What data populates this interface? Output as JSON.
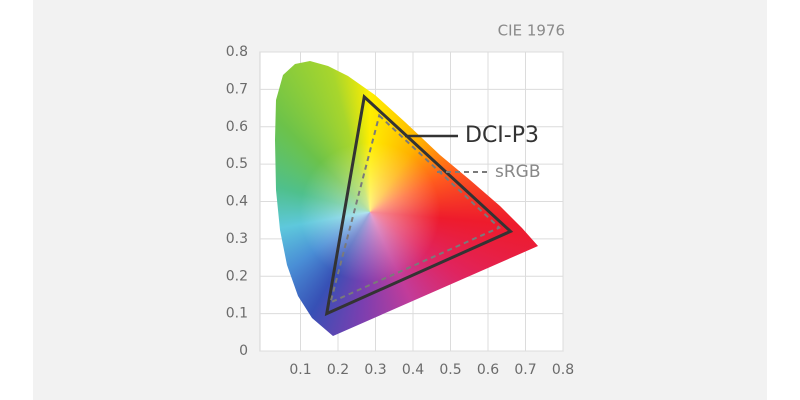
{
  "chart_data": {
    "type": "gamut",
    "title": "CIE 1976",
    "xlim": [
      0,
      0.8
    ],
    "ylim": [
      0,
      0.8
    ],
    "xticks": [
      0.1,
      0.2,
      0.3,
      0.4,
      0.5,
      0.6,
      0.7,
      0.8
    ],
    "yticks": [
      0,
      0.1,
      0.2,
      0.3,
      0.4,
      0.5,
      0.6,
      0.7,
      0.8
    ],
    "grid": true,
    "series": [
      {
        "name": "DCI-P3",
        "color": "#333333",
        "style": "solid",
        "x": [
          0.27,
          0.66,
          0.17
        ],
        "y": [
          0.68,
          0.32,
          0.1
        ]
      },
      {
        "name": "sRGB",
        "color": "#7a7a7a",
        "style": "dashed",
        "x": [
          0.31,
          0.63,
          0.18
        ],
        "y": [
          0.63,
          0.33,
          0.13
        ]
      }
    ]
  }
}
